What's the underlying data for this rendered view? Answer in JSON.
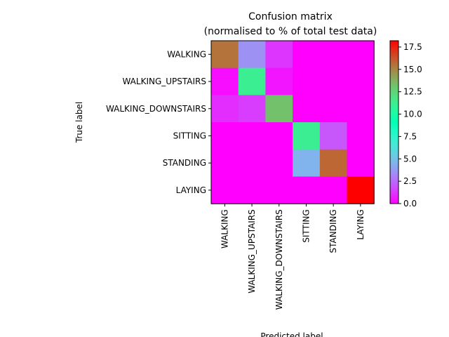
{
  "chart_data": {
    "type": "heatmap",
    "title": "Confusion matrix\n(normalised to % of total test data)",
    "title_lines": [
      "Confusion matrix",
      "(normalised to % of total test data)"
    ],
    "xlabel": "Predicted label",
    "ylabel": "True label",
    "x_categories": [
      "WALKING",
      "WALKING_UPSTAIRS",
      "WALKING_DOWNSTAIRS",
      "SITTING",
      "STANDING",
      "LAYING"
    ],
    "y_categories": [
      "WALKING",
      "WALKING_UPSTAIRS",
      "WALKING_DOWNSTAIRS",
      "SITTING",
      "STANDING",
      "LAYING"
    ],
    "values": [
      [
        15.5,
        3.5,
        1.2,
        0.0,
        0.0,
        0.0
      ],
      [
        0.3,
        11.2,
        0.5,
        0.0,
        0.0,
        0.0
      ],
      [
        1.0,
        1.4,
        13.2,
        0.0,
        0.0,
        0.0
      ],
      [
        0.0,
        0.0,
        0.0,
        11.2,
        2.0,
        0.0
      ],
      [
        0.0,
        0.0,
        0.0,
        4.5,
        15.8,
        0.0
      ],
      [
        0.0,
        0.0,
        0.0,
        0.0,
        0.0,
        18.2
      ]
    ],
    "colormap": "rainbow",
    "colorbar": {
      "min": 0.0,
      "max": 18.2,
      "ticks": [
        0.0,
        2.5,
        5.0,
        7.5,
        10.0,
        12.5,
        15.0,
        17.5
      ],
      "tick_labels": [
        "0.0",
        "2.5",
        "5.0",
        "7.5",
        "10.0",
        "12.5",
        "15.0",
        "17.5"
      ]
    },
    "grid": false,
    "legend": "colorbar-right"
  }
}
